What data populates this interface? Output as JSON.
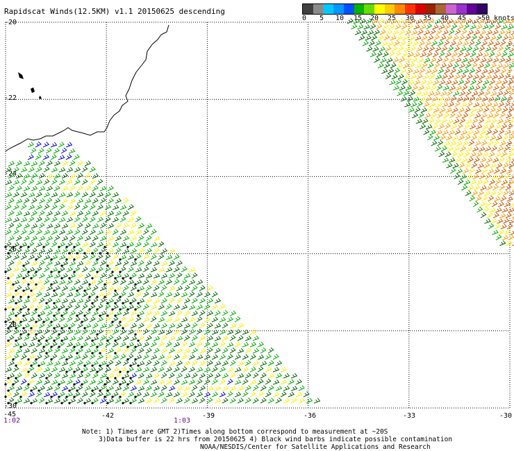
{
  "title": "Rapidscat Winds(12.5KM) v1.1 20150625 descending",
  "colorbar": {
    "colors": [
      "#404040",
      "#8a8a8a",
      "#00c8ff",
      "#0096ff",
      "#0050ff",
      "#00b400",
      "#66dd00",
      "#ffff00",
      "#ffcc00",
      "#ff8800",
      "#ff3300",
      "#dd0000",
      "#992200",
      "#aa6633",
      "#cc66cc",
      "#9933cc",
      "#660099",
      "#330066"
    ],
    "labels": [
      "0",
      "5",
      "10",
      "15",
      "20",
      "25",
      "30",
      "35",
      "40",
      "45",
      ">50 knots"
    ]
  },
  "y_axis_labels": [
    "-20",
    "-22",
    "-24",
    "-26",
    "-28",
    "-30"
  ],
  "x_axis_labels": [
    "-45",
    "-42",
    "-39",
    "-36",
    "-33",
    "-30"
  ],
  "time_labels": [
    "1:02",
    "1:03"
  ],
  "notes": [
    "Note: 1) Times are GMT 2)Times along bottom correspond to measurement at ~20S",
    "3)Data buffer is 22 hrs from 20150625 4) Black wind barbs indicate possible contamination",
    "NOAA/NESDIS/Center for Satellite Applications and Research"
  ],
  "map_extent": {
    "lon": [
      -45,
      -30
    ],
    "lat": [
      -30,
      -20
    ]
  },
  "barb_colors": {
    "green": "#00aa00",
    "dark_green": "#006400",
    "yellow": "#ffee00",
    "orange": "#ff9900",
    "dark_orange": "#cc5500",
    "blue": "#0000ee",
    "black": "#000000"
  }
}
